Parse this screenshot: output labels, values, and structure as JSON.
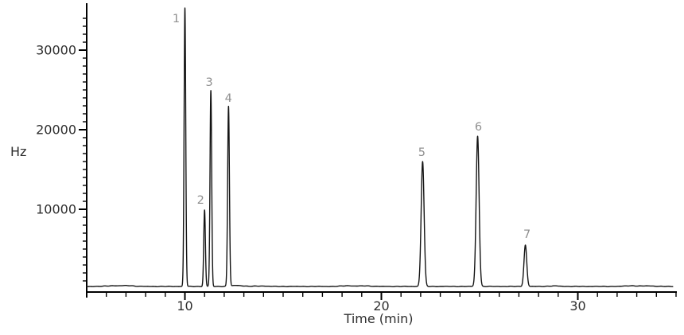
{
  "figure": {
    "description": "Gas chromatogram trace with seven numbered peaks",
    "colors": {
      "background": "#ffffff",
      "trace": "#141414",
      "axis": "#000000",
      "tick_label": "#2e2e2e",
      "axis_title": "#2e2e2e",
      "peak_label": "#8f8f8f"
    }
  },
  "chart_data": {
    "type": "line",
    "title": "",
    "xlabel": "Time (min)",
    "ylabel": "Hz",
    "xlim": [
      5,
      35
    ],
    "ylim": [
      0,
      35500
    ],
    "x_major_ticks": [
      10,
      20,
      30
    ],
    "x_minor_step": 1,
    "y_major_ticks": [
      10000,
      20000,
      30000
    ],
    "y_minor_step": 1000,
    "grid": false,
    "legend": false,
    "baseline_hz": 300,
    "peaks": [
      {
        "label": "1",
        "time_min": 10.0,
        "height_hz": 35000,
        "sigma_min": 0.042,
        "label_dx": -11,
        "label_dy": 18
      },
      {
        "label": "2",
        "time_min": 11.0,
        "height_hz": 9600,
        "sigma_min": 0.042,
        "label_dx": -5,
        "label_dy": -8
      },
      {
        "label": "3",
        "time_min": 11.32,
        "height_hz": 24600,
        "sigma_min": 0.042,
        "label_dx": -2,
        "label_dy": -6
      },
      {
        "label": "4",
        "time_min": 12.22,
        "height_hz": 22600,
        "sigma_min": 0.045,
        "label_dx": 0,
        "label_dy": -6
      },
      {
        "label": "5",
        "time_min": 22.1,
        "height_hz": 15700,
        "sigma_min": 0.075,
        "label_dx": -1,
        "label_dy": -7
      },
      {
        "label": "6",
        "time_min": 24.9,
        "height_hz": 18900,
        "sigma_min": 0.075,
        "label_dx": 1,
        "label_dy": -7
      },
      {
        "label": "7",
        "time_min": 27.33,
        "height_hz": 5200,
        "sigma_min": 0.07,
        "label_dx": 2,
        "label_dy": -9
      }
    ],
    "noise_bumps": [
      {
        "time_min": 6.3,
        "height_hz": 90
      },
      {
        "time_min": 7.1,
        "height_hz": 110
      },
      {
        "time_min": 12.65,
        "height_hz": 130
      },
      {
        "time_min": 13.9,
        "height_hz": 60
      },
      {
        "time_min": 18.3,
        "height_hz": 90
      },
      {
        "time_min": 19.2,
        "height_hz": 70
      },
      {
        "time_min": 28.8,
        "height_hz": 60
      },
      {
        "time_min": 32.7,
        "height_hz": 90
      },
      {
        "time_min": 33.6,
        "height_hz": 70
      }
    ]
  }
}
